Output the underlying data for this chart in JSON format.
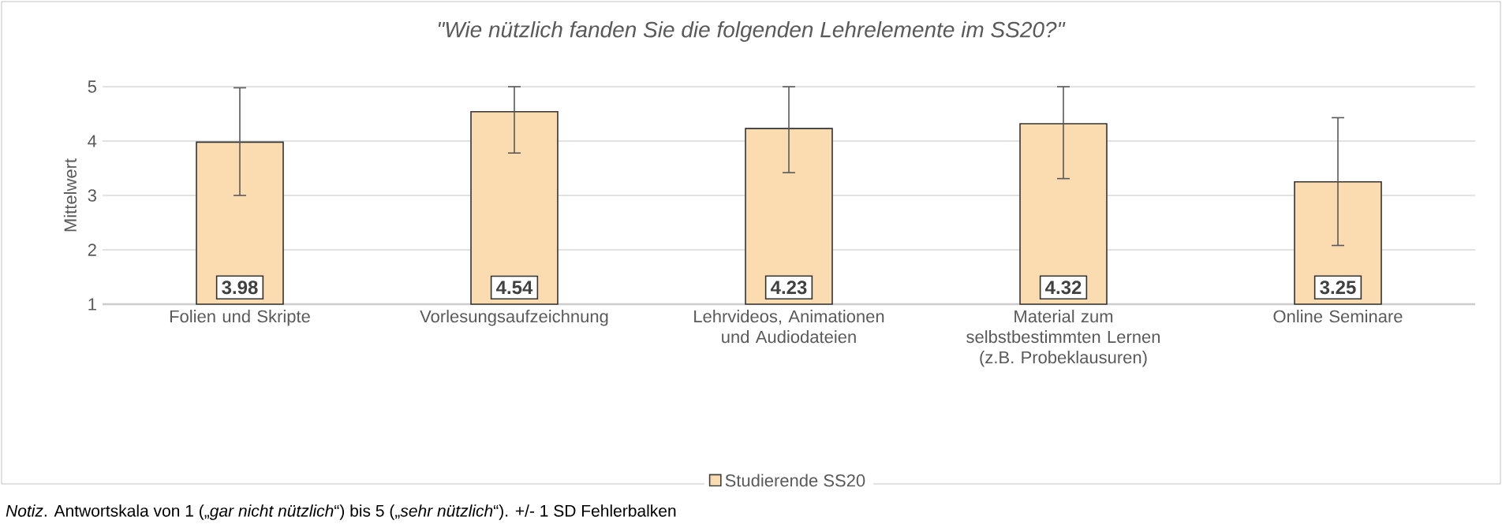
{
  "chart_data": {
    "type": "bar",
    "title": "*\"Wie nützlich fanden Sie die folgenden Lehrelemente im SS20?\"*",
    "ylabel": "Mittelwert",
    "categories": [
      "Folien und Skripte",
      "Vorlesungsaufzeichnung",
      "Lehrvideos, Animationen und Audiodateien",
      "Material zum selbstbestimmten Lernen (z.B. Probeklausuren)",
      "Online Seminare"
    ],
    "series": [
      {
        "name": "Studierende SS20",
        "color": "#fbdcb0",
        "values": [
          3.98,
          4.54,
          4.23,
          4.32,
          3.25
        ],
        "errors": [
          [
            3.0,
            4.98
          ],
          [
            3.78,
            5
          ],
          [
            3.42,
            5
          ],
          [
            3.31,
            5
          ],
          [
            2.08,
            4.43
          ]
        ]
      }
    ],
    "ylim": [
      1,
      5
    ],
    "yticks": [
      1,
      2,
      3,
      4,
      5
    ],
    "grid": "y",
    "legend": "bottom",
    "data_labels": true,
    "annotations": [
      "*Notiz*. Antwortskala von 1 („*gar nicht nützlich*“) bis 5 („*sehr nützlich*“). +/- 1 SD Fehlerbalken"
    ]
  }
}
